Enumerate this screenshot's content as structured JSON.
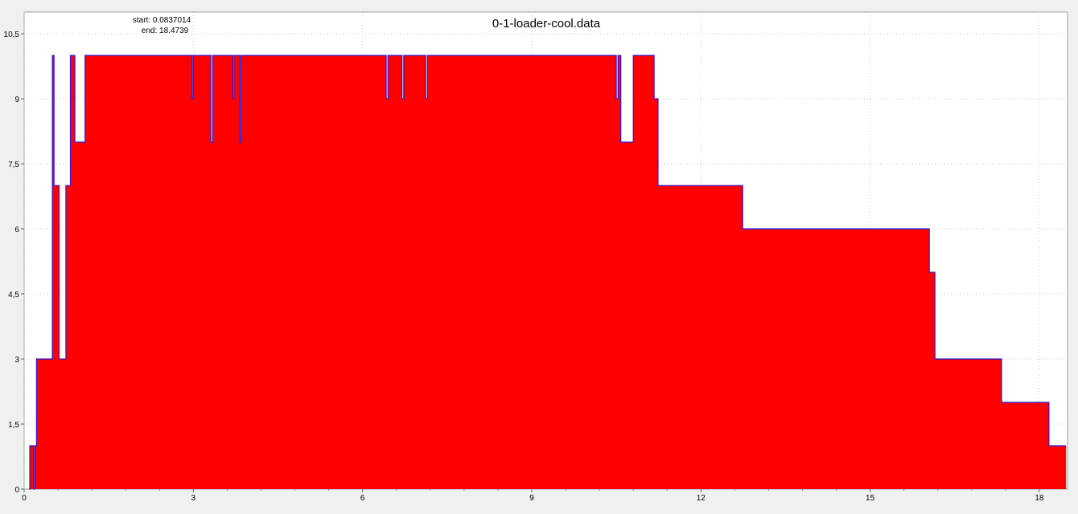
{
  "chart_data": {
    "type": "area",
    "title": "0-1-loader-cool.data",
    "annotations": {
      "start_label": "start: 0.0837014",
      "end_label": "end: 18.4739"
    },
    "xlabel": "",
    "ylabel": "",
    "xlim": [
      0,
      18.5
    ],
    "ylim": [
      0,
      11
    ],
    "x_ticks": [
      0,
      3,
      6,
      9,
      12,
      15,
      18
    ],
    "x_tick_labels": [
      "0",
      "3",
      "6",
      "9",
      "12",
      "15",
      "18"
    ],
    "y_ticks": [
      0,
      1.5,
      3,
      4.5,
      6,
      7.5,
      9,
      10.5
    ],
    "y_tick_labels": [
      "0",
      "1,5",
      "3",
      "4,5",
      "6",
      "7,5",
      "9",
      "10,5"
    ],
    "grid": true,
    "colors": {
      "fill": "#ff0000",
      "line": "#2a1bd6",
      "grid": "#c8c8c8",
      "plot_bg": "#ffffff",
      "frame_bg": "#f0f0f0"
    },
    "series": [
      {
        "step": "post",
        "x": [
          0.0837,
          0.1,
          0.17,
          0.19,
          0.22,
          0.5,
          0.51,
          0.53,
          0.62,
          0.74,
          0.8,
          0.82,
          0.87,
          0.9,
          1.08,
          2.98,
          3.0,
          3.31,
          3.34,
          3.7,
          3.72,
          3.83,
          3.85,
          6.42,
          6.45,
          6.7,
          6.73,
          7.12,
          7.15,
          10.5,
          10.53,
          10.58,
          10.8,
          11.17,
          11.24,
          12.74,
          16.05,
          16.15,
          17.33,
          18.17,
          18.4739
        ],
        "y": [
          0,
          1,
          0,
          1,
          3,
          10,
          10,
          7,
          3,
          7,
          7,
          10,
          10,
          8,
          10,
          9,
          10,
          8,
          10,
          9,
          10,
          8,
          10,
          9,
          10,
          9,
          10,
          9,
          10,
          9,
          10,
          8,
          10,
          9,
          7,
          6,
          5,
          3,
          2,
          1,
          1
        ]
      }
    ]
  }
}
